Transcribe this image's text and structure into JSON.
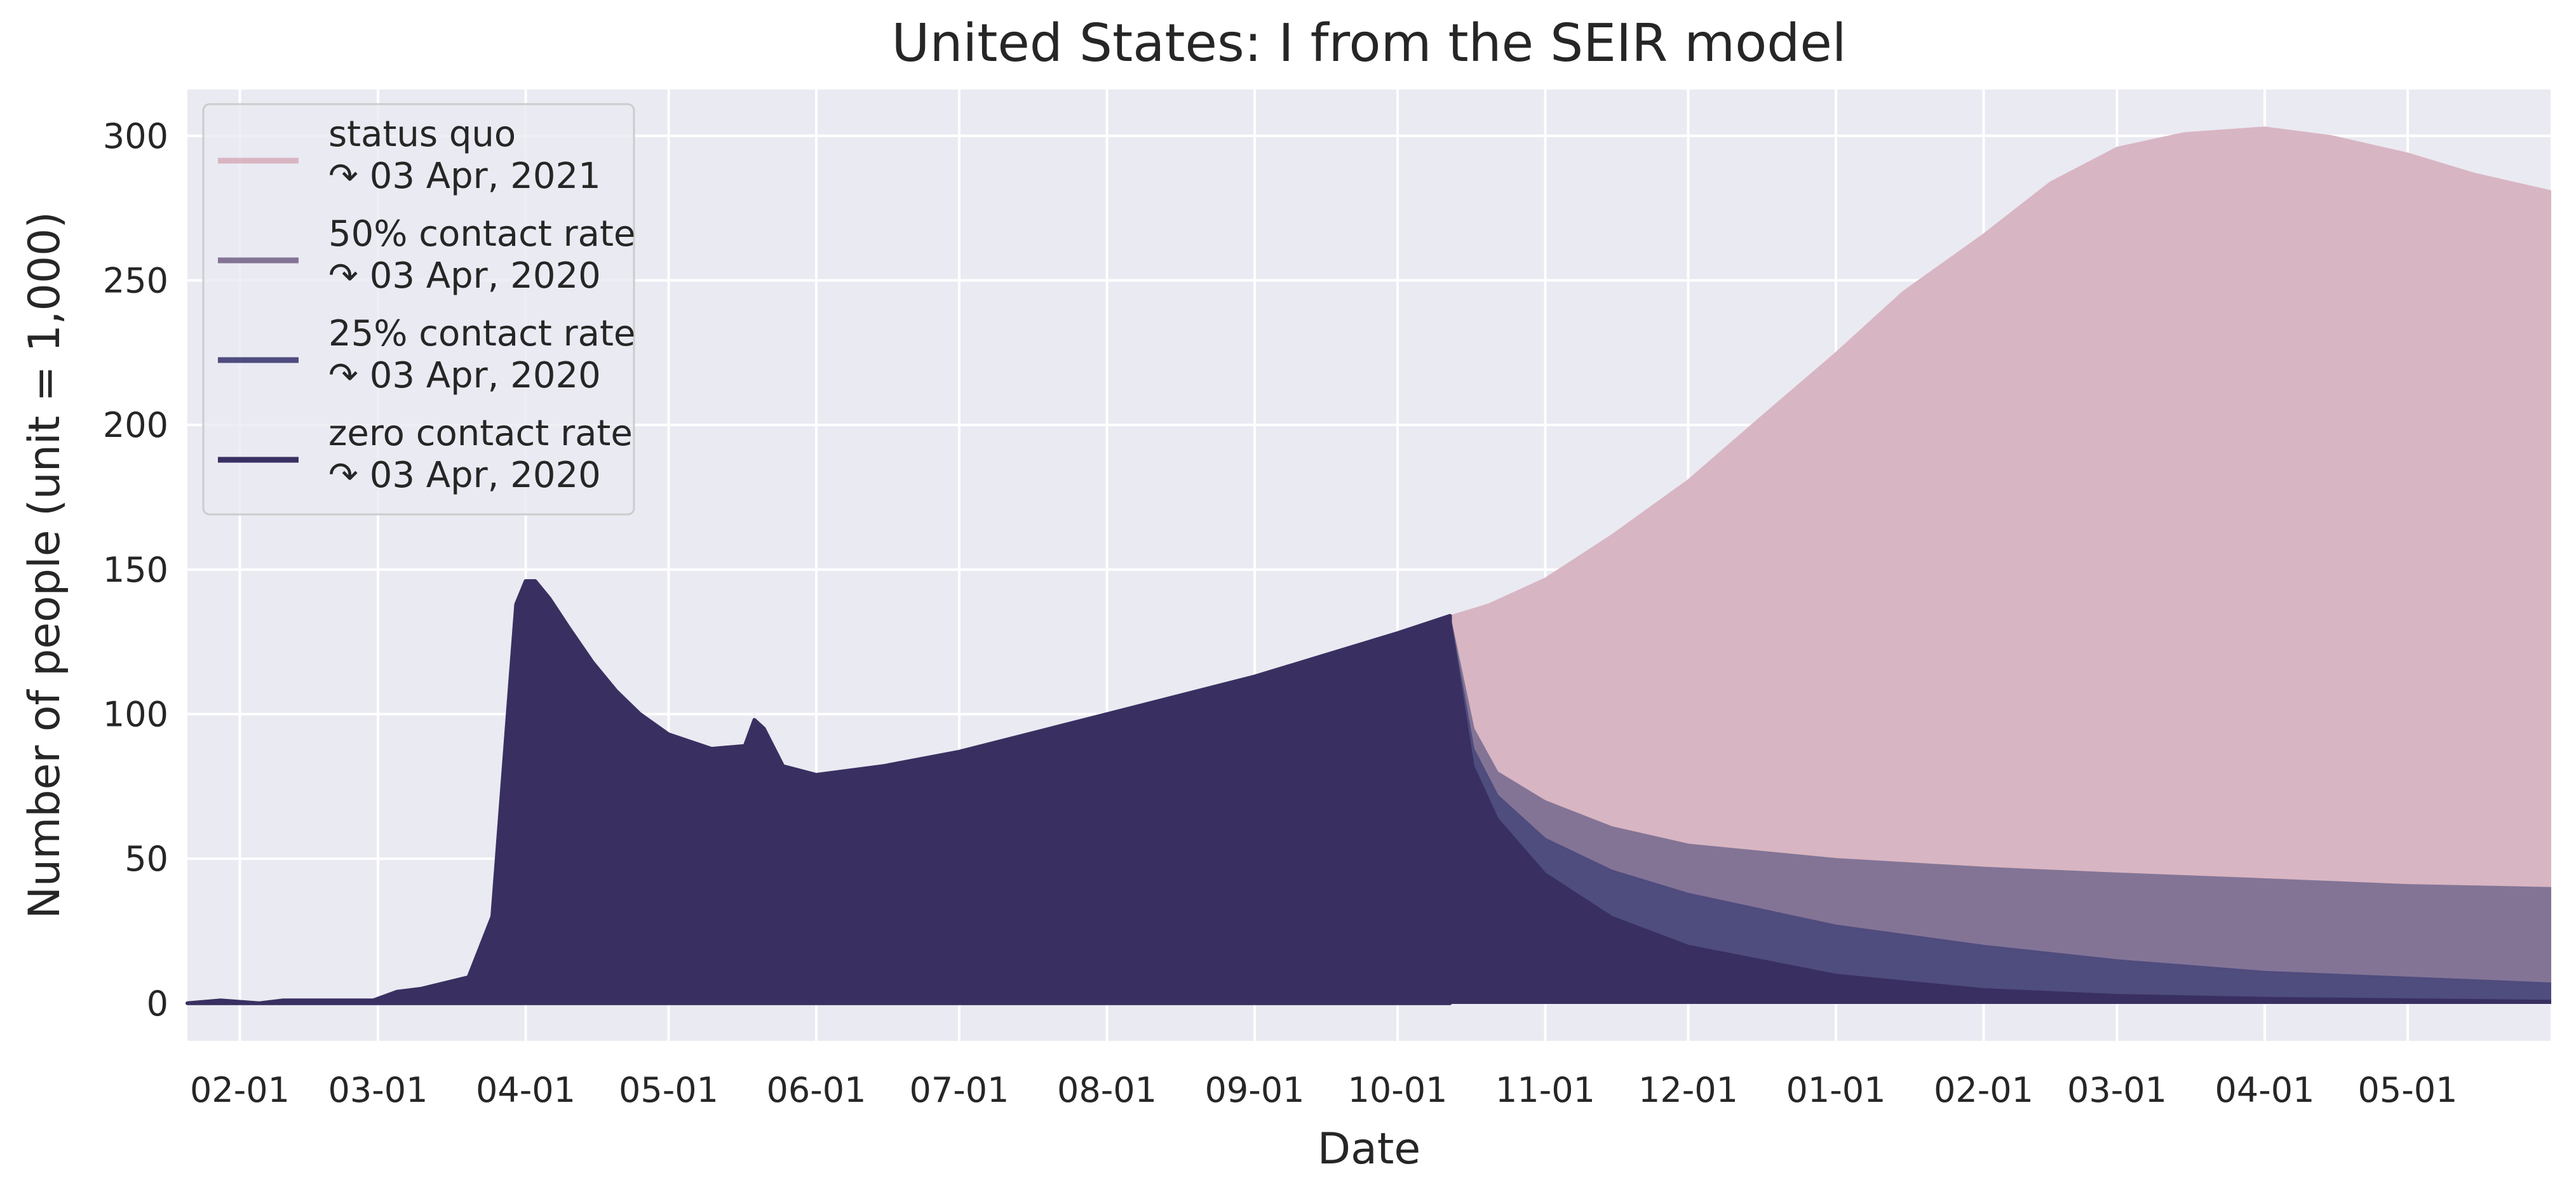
{
  "chart_data": {
    "type": "area",
    "title": "United States: I from the SEIR model",
    "xlabel": "Date",
    "ylabel": "Number of people (unit = 1,000)",
    "xlim": [
      "2020-01-21",
      "2021-05-31"
    ],
    "ylim": [
      -13,
      316
    ],
    "yticks": [
      0,
      50,
      100,
      150,
      200,
      250,
      300
    ],
    "xticks": [
      "2020-02-01",
      "2020-03-01",
      "2020-04-01",
      "2020-05-01",
      "2020-06-01",
      "2020-07-01",
      "2020-08-01",
      "2020-09-01",
      "2020-10-01",
      "2020-11-01",
      "2020-12-01",
      "2021-01-01",
      "2021-02-01",
      "2021-03-01",
      "2021-04-01",
      "2021-05-01"
    ],
    "xtick_labels": [
      "02-01",
      "03-01",
      "04-01",
      "05-01",
      "06-01",
      "07-01",
      "08-01",
      "09-01",
      "10-01",
      "11-01",
      "12-01",
      "01-01",
      "02-01",
      "03-01",
      "04-01",
      "05-01"
    ],
    "grid": true,
    "legend_position": "upper-left",
    "legend_items": [
      {
        "label": "status quo",
        "sublabel": "↷ 03 Apr, 2021",
        "color": "#d8b5c2"
      },
      {
        "label": "50% contact rate",
        "sublabel": "↷ 03 Apr, 2020",
        "color": "#837496"
      },
      {
        "label": "25% contact rate",
        "sublabel": "↷ 03 Apr, 2020",
        "color": "#4f4c7e"
      },
      {
        "label": "zero contact rate",
        "sublabel": "↷ 03 Apr, 2020",
        "color": "#393061"
      }
    ],
    "history": {
      "color": "#393061",
      "x": [
        "2020-01-21",
        "2020-01-28",
        "2020-02-05",
        "2020-02-10",
        "2020-02-20",
        "2020-02-29",
        "2020-03-05",
        "2020-03-10",
        "2020-03-15",
        "2020-03-20",
        "2020-03-25",
        "2020-03-28",
        "2020-03-30",
        "2020-04-01",
        "2020-04-03",
        "2020-04-06",
        "2020-04-10",
        "2020-04-15",
        "2020-04-20",
        "2020-04-25",
        "2020-05-01",
        "2020-05-10",
        "2020-05-17",
        "2020-05-19",
        "2020-05-21",
        "2020-05-25",
        "2020-06-01",
        "2020-06-15",
        "2020-07-01",
        "2020-08-01",
        "2020-09-01",
        "2020-09-15",
        "2020-10-01",
        "2020-10-12"
      ],
      "y": [
        0,
        1,
        0,
        1,
        1,
        1,
        4,
        5,
        7,
        9,
        30,
        95,
        138,
        146,
        146,
        140,
        130,
        118,
        108,
        100,
        93,
        88,
        89,
        98,
        95,
        82,
        79,
        82,
        87,
        100,
        113,
        120,
        128,
        134
      ]
    },
    "series": [
      {
        "name": "status quo",
        "color": "#d8b5c2",
        "x": [
          "2020-10-12",
          "2020-10-20",
          "2020-11-01",
          "2020-11-15",
          "2020-12-01",
          "2020-12-15",
          "2021-01-01",
          "2021-01-15",
          "2021-02-01",
          "2021-02-15",
          "2021-03-01",
          "2021-03-15",
          "2021-04-01",
          "2021-04-15",
          "2021-05-01",
          "2021-05-15",
          "2021-05-31"
        ],
        "y": [
          134,
          138,
          147,
          162,
          181,
          201,
          225,
          246,
          266,
          284,
          296,
          301,
          303,
          300,
          294,
          287,
          281
        ]
      },
      {
        "name": "50% contact rate",
        "color": "#837496",
        "x": [
          "2020-10-12",
          "2020-10-17",
          "2020-10-22",
          "2020-11-01",
          "2020-11-15",
          "2020-12-01",
          "2021-01-01",
          "2021-02-01",
          "2021-03-01",
          "2021-04-01",
          "2021-05-01",
          "2021-05-31"
        ],
        "y": [
          134,
          95,
          80,
          70,
          61,
          55,
          50,
          47,
          45,
          43,
          41,
          40
        ]
      },
      {
        "name": "25% contact rate",
        "color": "#4f4c7e",
        "x": [
          "2020-10-12",
          "2020-10-17",
          "2020-10-22",
          "2020-11-01",
          "2020-11-15",
          "2020-12-01",
          "2021-01-01",
          "2021-02-01",
          "2021-03-01",
          "2021-04-01",
          "2021-05-01",
          "2021-05-31"
        ],
        "y": [
          134,
          88,
          72,
          57,
          46,
          38,
          27,
          20,
          15,
          11,
          9,
          7
        ]
      },
      {
        "name": "zero contact rate",
        "color": "#393061",
        "x": [
          "2020-10-12",
          "2020-10-17",
          "2020-10-22",
          "2020-11-01",
          "2020-11-15",
          "2020-12-01",
          "2021-01-01",
          "2021-02-01",
          "2021-03-01",
          "2021-04-01",
          "2021-05-01",
          "2021-05-31"
        ],
        "y": [
          134,
          82,
          64,
          45,
          30,
          20,
          10,
          5,
          3,
          2,
          1.5,
          1
        ]
      }
    ]
  }
}
